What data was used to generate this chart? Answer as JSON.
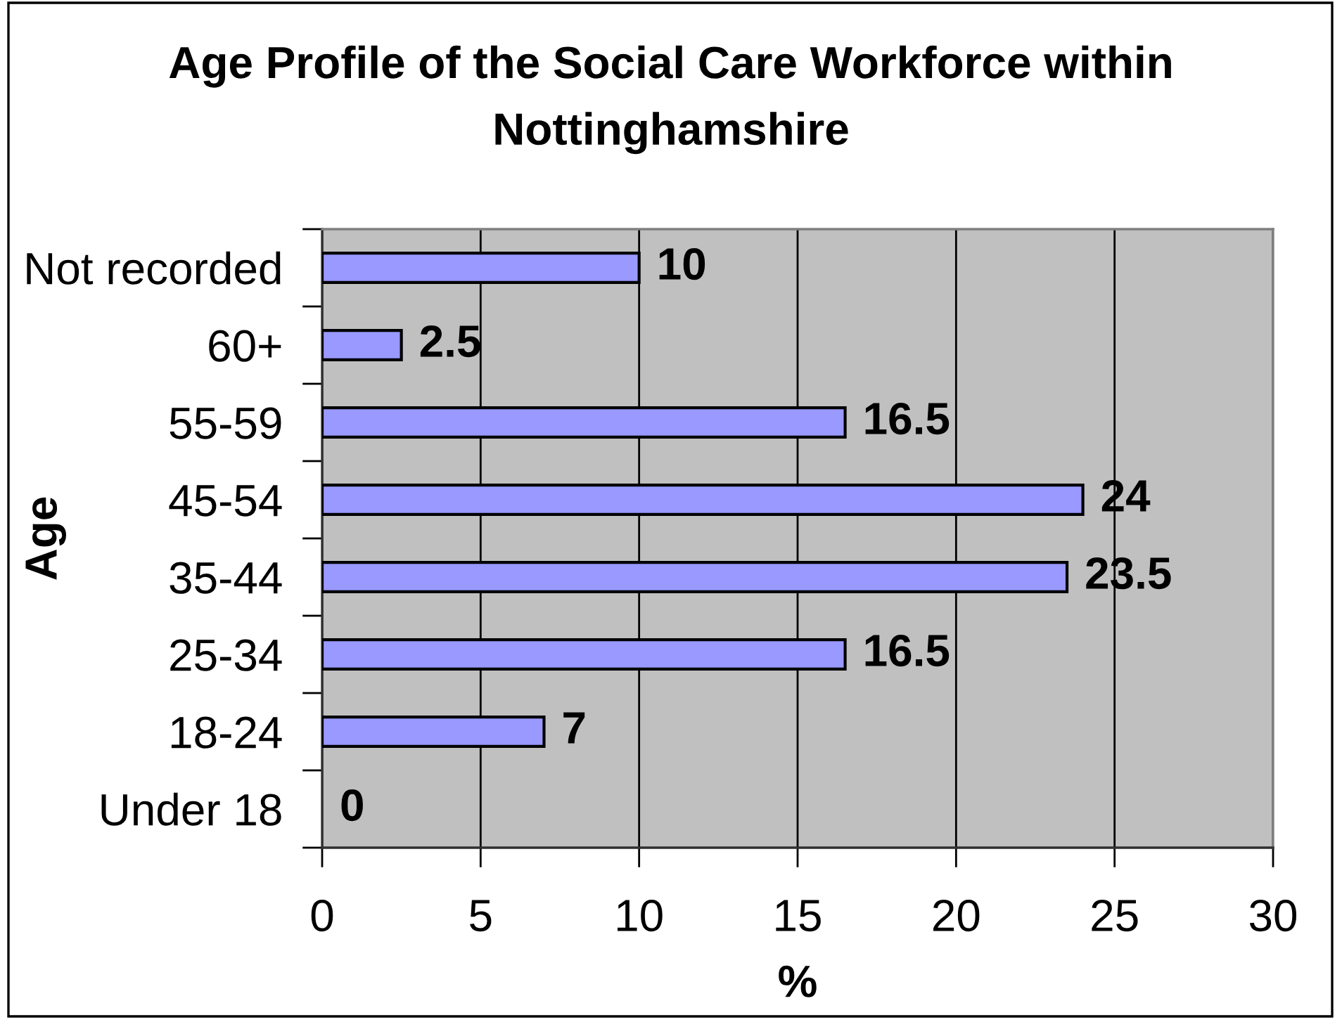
{
  "chart_data": {
    "type": "bar",
    "orientation": "horizontal",
    "title": "Age Profile of the Social Care Workforce within\nNottinghamshire",
    "xlabel": "%",
    "ylabel": "Age",
    "categories": [
      "Not recorded",
      "60+",
      "55-59",
      "45-54",
      "35-44",
      "25-34",
      "18-24",
      "Under 18"
    ],
    "values": [
      10,
      2.5,
      16.5,
      24,
      23.5,
      16.5,
      7,
      0
    ],
    "color": "#9999ff",
    "xlim": [
      0,
      30
    ],
    "xticks": [
      0,
      5,
      10,
      15,
      20,
      25,
      30
    ],
    "grid": "x",
    "data_labels": true
  }
}
